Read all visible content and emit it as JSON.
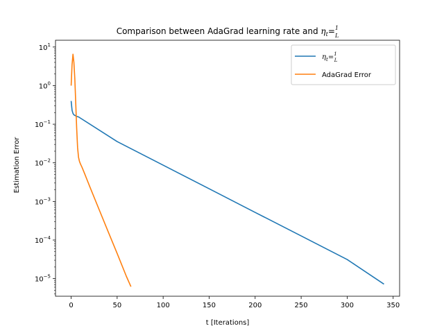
{
  "chart_data": {
    "type": "line",
    "title_prefix": "Comparison between AdaGrad learning rate and ",
    "title_math": {
      "eta": "η",
      "sub": "t",
      "eq": "=",
      "num": "1",
      "den": "L"
    },
    "xlabel": "t [Iterations]",
    "ylabel": "Estimation Error",
    "xlim": [
      -17,
      357
    ],
    "ylim": [
      3.5e-06,
      15
    ],
    "yscale": "log",
    "grid": false,
    "legend_position": "top-right",
    "x_ticks": [
      0,
      50,
      100,
      150,
      200,
      250,
      300,
      350
    ],
    "x_tick_labels": [
      "0",
      "50",
      "100",
      "150",
      "200",
      "250",
      "300",
      "350"
    ],
    "y_ticks": [
      1e-05,
      0.0001,
      0.001,
      0.01,
      0.1,
      1,
      10
    ],
    "y_tick_labels": [
      {
        "base": "10",
        "exp": "−5"
      },
      {
        "base": "10",
        "exp": "−4"
      },
      {
        "base": "10",
        "exp": "−3"
      },
      {
        "base": "10",
        "exp": "−2"
      },
      {
        "base": "10",
        "exp": "−1"
      },
      {
        "base": "10",
        "exp": "0"
      },
      {
        "base": "10",
        "exp": "1"
      }
    ],
    "series": [
      {
        "legend": {
          "eta": "η",
          "sub": "t",
          "eq": "=",
          "num": "1",
          "den": "L"
        },
        "color": "#1f77b4",
        "x": [
          0,
          1,
          2,
          3,
          4,
          6,
          8,
          50,
          100,
          150,
          200,
          250,
          300,
          340
        ],
        "y": [
          0.4,
          0.23,
          0.19,
          0.175,
          0.17,
          0.16,
          0.155,
          0.0355,
          0.0087,
          0.00213,
          0.00052,
          0.000128,
          3.13e-05,
          7.2e-06
        ]
      },
      {
        "legend": {
          "text": "AdaGrad Error"
        },
        "color": "#ff7f0e",
        "x": [
          0,
          1,
          2,
          3,
          4,
          5,
          6,
          7,
          8,
          9,
          10,
          12,
          15,
          20,
          30,
          40,
          50,
          60,
          65
        ],
        "y": [
          1.0,
          3.5,
          6.5,
          4.0,
          1.5,
          0.35,
          0.08,
          0.025,
          0.014,
          0.011,
          0.0095,
          0.0075,
          0.005,
          0.0025,
          0.00065,
          0.00017,
          4.5e-05,
          1.15e-05,
          6.2e-06
        ]
      }
    ]
  }
}
